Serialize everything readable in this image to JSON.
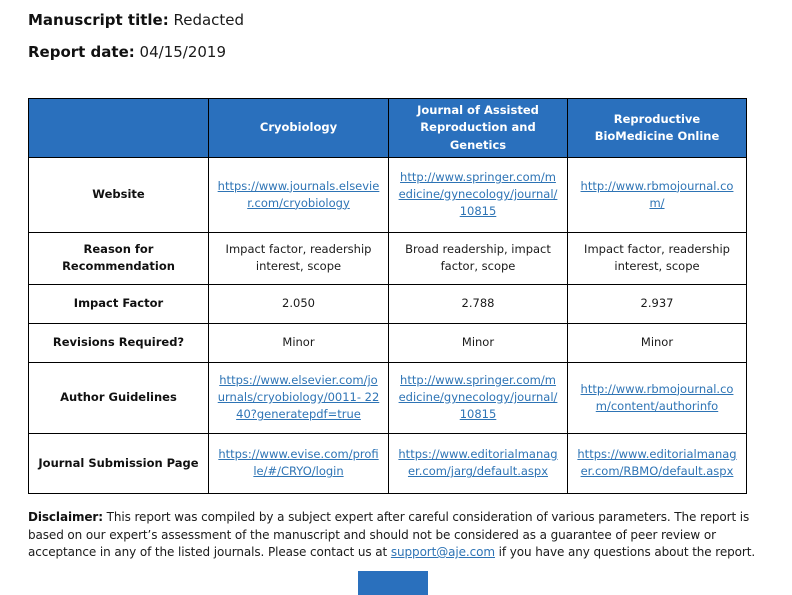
{
  "header": {
    "manuscript_title_label": "Manuscript title:",
    "manuscript_title_value": "Redacted",
    "report_date_label": "Report date:",
    "report_date_value": "04/15/2019"
  },
  "table": {
    "columns": [
      "Cryobiology",
      "Journal of Assisted Reproduction and Genetics",
      "Reproductive BioMedicine Online"
    ],
    "rows": [
      {
        "label": "Website",
        "values": [
          "https://www.journals.elsevier.com/cryobiology",
          "http://www.springer.com/medicine/gynecology/journal/10815",
          "http://www.rbmojournal.com/"
        ]
      },
      {
        "label": "Reason for Recommendation",
        "values": [
          "Impact factor, readership interest, scope",
          "Broad readership, impact factor, scope",
          "Impact factor, readership interest, scope"
        ]
      },
      {
        "label": "Impact Factor",
        "values": [
          "2.050",
          "2.788",
          "2.937"
        ]
      },
      {
        "label": "Revisions Required?",
        "values": [
          "Minor",
          "Minor",
          "Minor"
        ]
      },
      {
        "label": "Author Guidelines",
        "values": [
          "https://www.elsevier.com/journals/cryobiology/0011- 2240?generatepdf=true",
          "http://www.springer.com/medicine/gynecology/journal/10815",
          "http://www.rbmojournal.com/content/authorinfo"
        ]
      },
      {
        "label": "Journal Submission Page",
        "values": [
          "https://www.evise.com/profile/#/CRYO/login",
          "https://www.editorialmanager.com/jarg/default.aspx",
          "https://www.editorialmanager.com/RBMO/default.aspx"
        ]
      }
    ]
  },
  "disclaimer": {
    "label": "Disclaimer:",
    "text_before_link": " This report was compiled by a subject expert after careful consideration of various parameters. The report is based on our expert’s assessment of the manuscript and should not be considered as a guarantee of peer review or acceptance in any of the listed journals. Please contact us at ",
    "link_text": "support@aje.com",
    "text_after_link": " if you have any questions about the report."
  },
  "colors": {
    "table_header_bg": "#2a70bd",
    "link": "#2e74b5",
    "border": "#000000",
    "logo": "#2a70bd"
  }
}
